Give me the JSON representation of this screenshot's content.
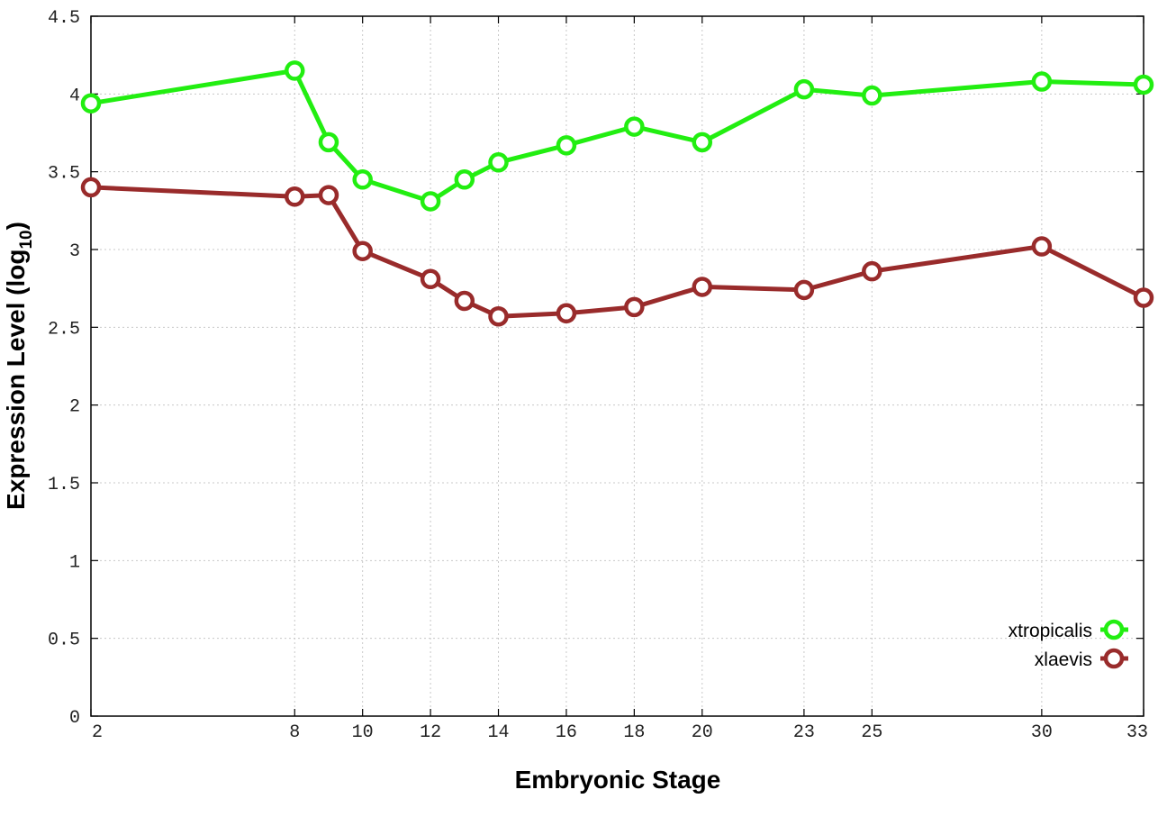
{
  "chart_data": {
    "type": "line",
    "xlabel": "Embryonic Stage",
    "ylabel": "Expression Level (log",
    "ylabel_sub": "10",
    "ylabel_close": ")",
    "x": [
      2,
      8,
      9,
      10,
      12,
      13,
      14,
      16,
      18,
      20,
      23,
      25,
      30,
      33
    ],
    "x_tick_labels": [
      "2",
      "8",
      "10",
      "12",
      "14",
      "16",
      "18",
      "20",
      "23",
      "25",
      "30",
      "33"
    ],
    "y_ticks": [
      "0",
      "0.5",
      "1",
      "1.5",
      "2",
      "2.5",
      "3",
      "3.5",
      "4",
      "4.5"
    ],
    "xlim": [
      2,
      33
    ],
    "ylim": [
      0,
      4.5
    ],
    "grid": true,
    "legend_position": "bottom-right",
    "series": [
      {
        "name": "xtropicalis",
        "color": "#22ee11",
        "values": [
          3.94,
          4.15,
          3.69,
          3.45,
          3.31,
          3.45,
          3.56,
          3.67,
          3.79,
          3.69,
          4.03,
          3.99,
          4.08,
          4.06
        ]
      },
      {
        "name": "xlaevis",
        "color": "#992b2b",
        "values": [
          3.4,
          3.34,
          3.35,
          2.99,
          2.81,
          2.67,
          2.57,
          2.59,
          2.63,
          2.76,
          2.74,
          2.86,
          3.02,
          2.69
        ]
      }
    ]
  }
}
